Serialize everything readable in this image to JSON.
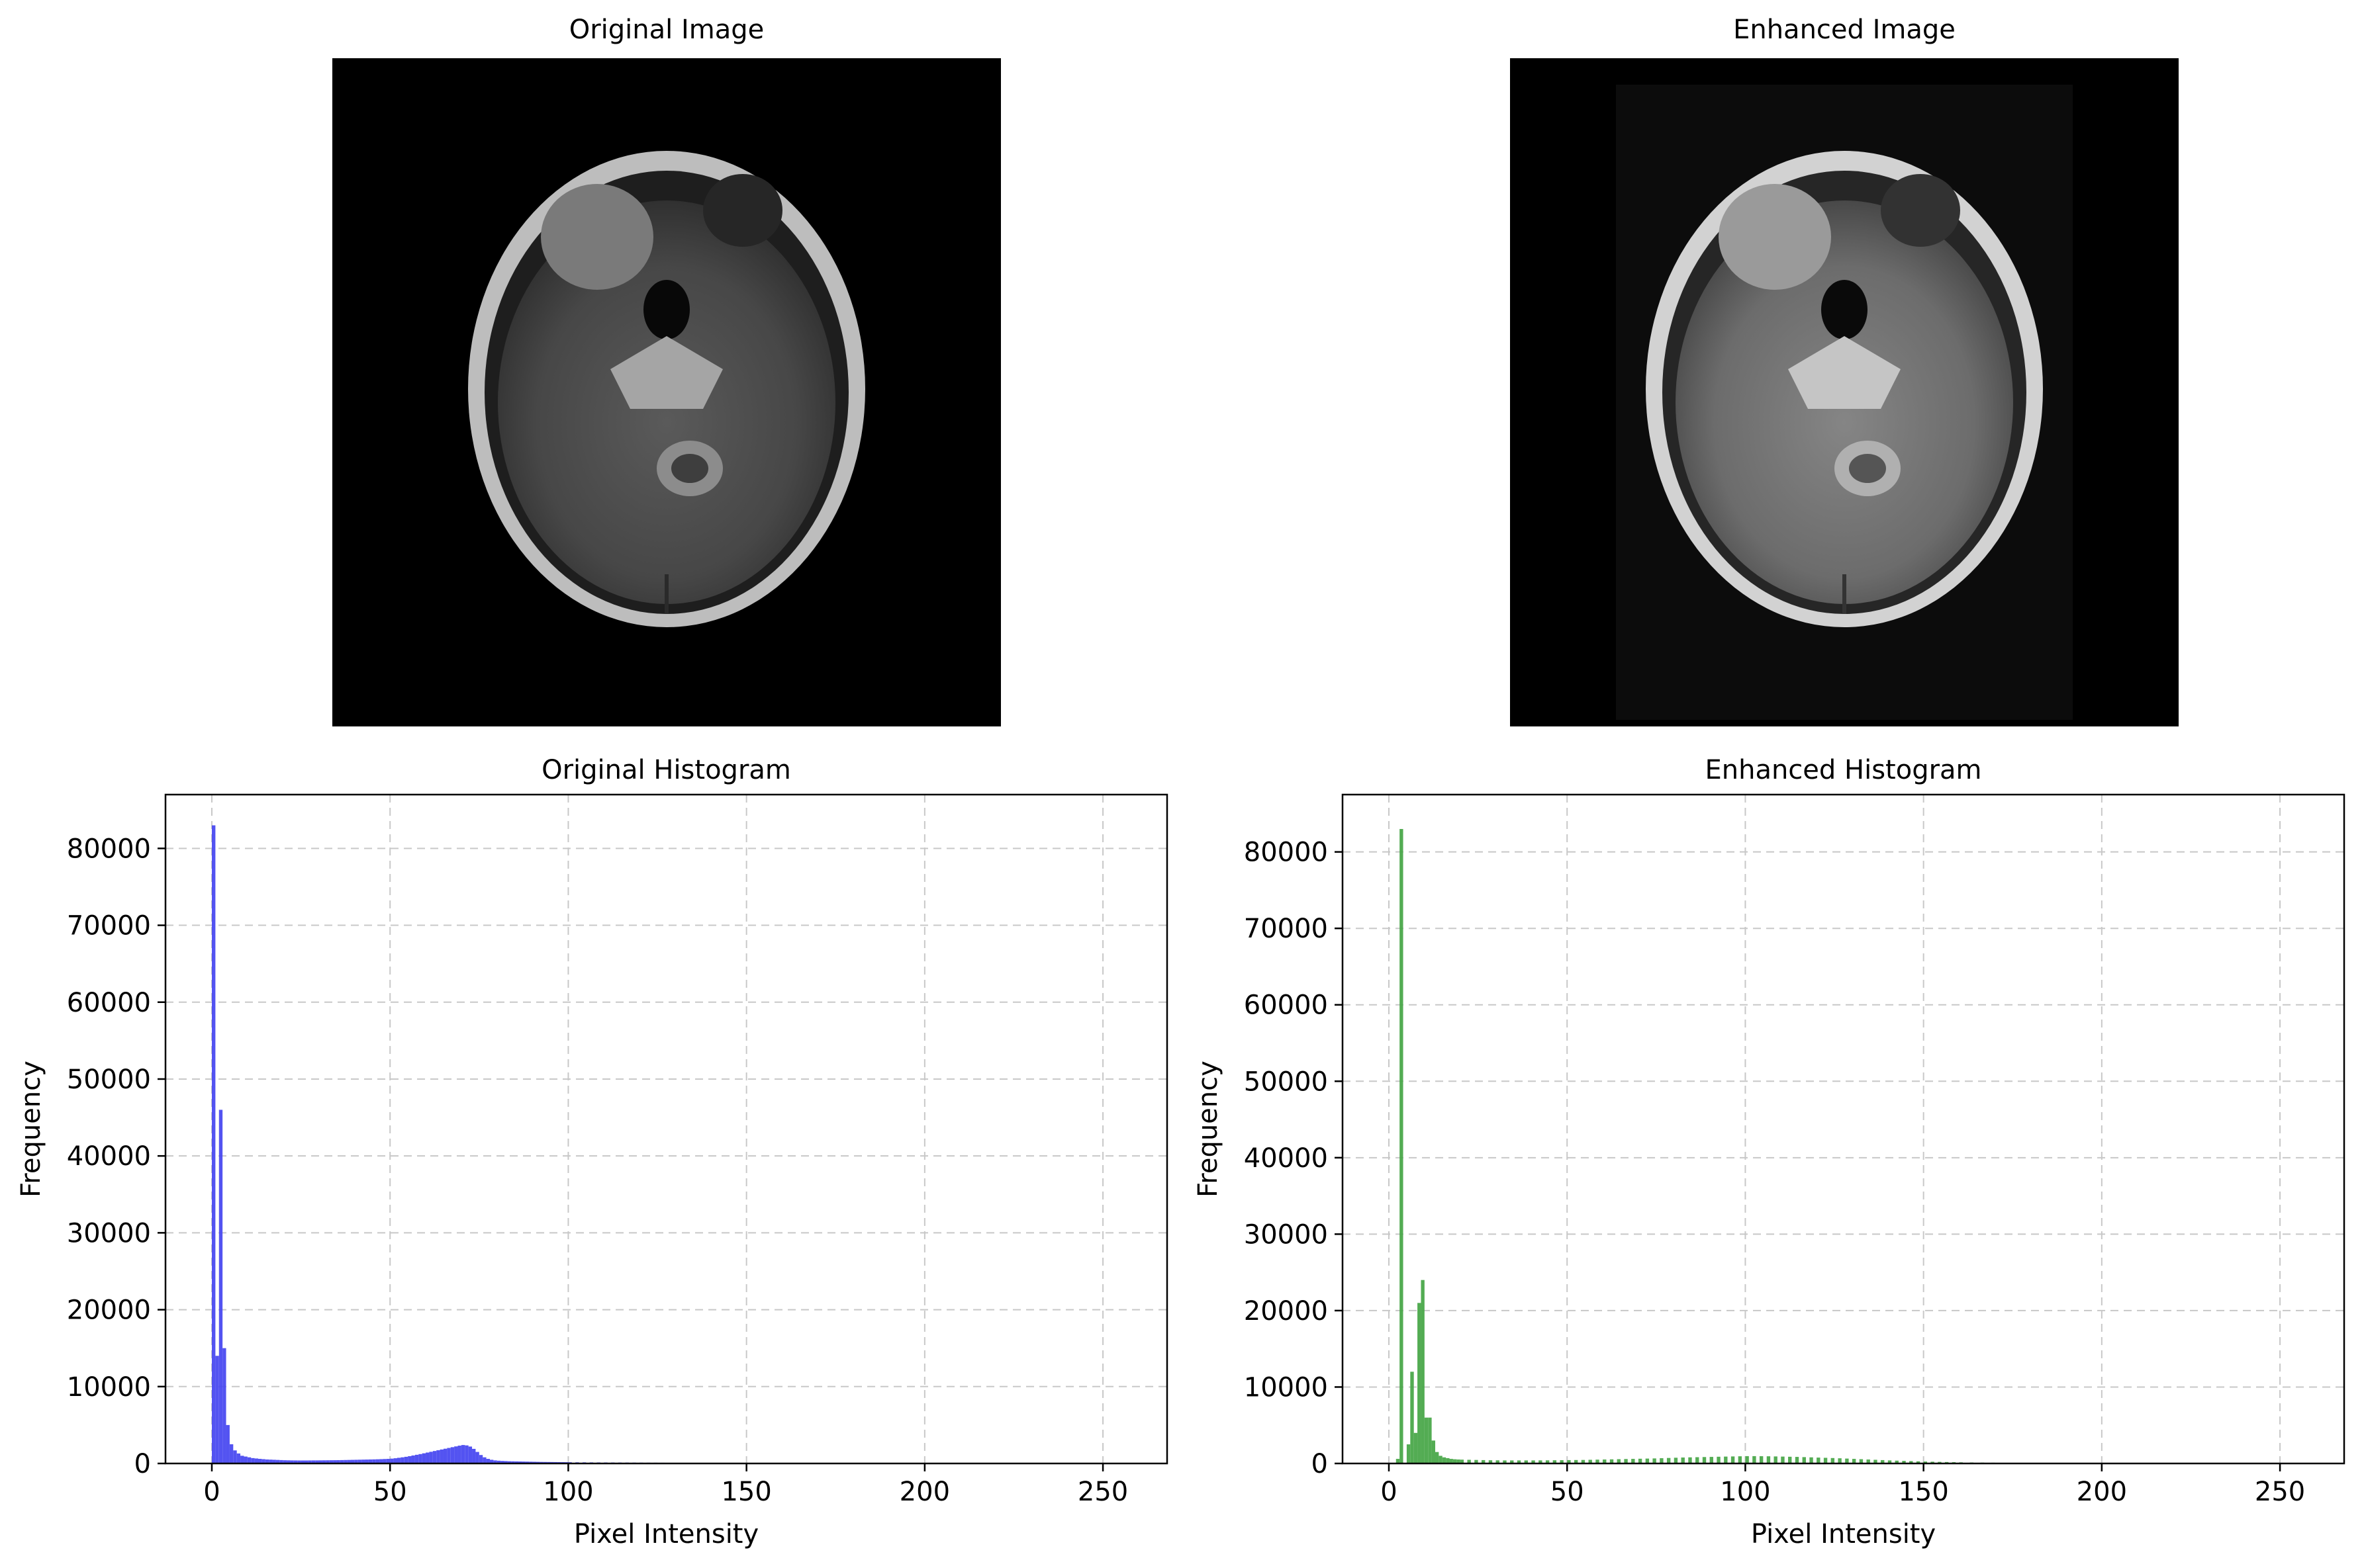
{
  "panels": {
    "original_image_title": "Original Image",
    "enhanced_image_title": "Enhanced Image"
  },
  "chart_data": [
    {
      "type": "bar",
      "title": "Original Histogram",
      "xlabel": "Pixel Intensity",
      "ylabel": "Frequency",
      "xlim": [
        -13,
        268
      ],
      "ylim": [
        0,
        87000
      ],
      "xticks": [
        0,
        50,
        100,
        150,
        200,
        250
      ],
      "yticks": [
        0,
        10000,
        20000,
        30000,
        40000,
        50000,
        60000,
        70000,
        80000
      ],
      "grid": true,
      "color": "#4a4af0",
      "bin_width": 1,
      "bins": [
        [
          0,
          83000
        ],
        [
          1,
          14000
        ],
        [
          2,
          46000
        ],
        [
          3,
          15000
        ],
        [
          4,
          5000
        ],
        [
          5,
          2500
        ],
        [
          6,
          1700
        ],
        [
          7,
          1300
        ],
        [
          8,
          1000
        ],
        [
          9,
          900
        ],
        [
          10,
          800
        ],
        [
          11,
          700
        ],
        [
          12,
          650
        ],
        [
          13,
          600
        ],
        [
          14,
          560
        ],
        [
          15,
          520
        ],
        [
          16,
          500
        ],
        [
          17,
          480
        ],
        [
          18,
          460
        ],
        [
          19,
          440
        ],
        [
          20,
          420
        ],
        [
          21,
          410
        ],
        [
          22,
          400
        ],
        [
          23,
          395
        ],
        [
          24,
          390
        ],
        [
          25,
          390
        ],
        [
          26,
          390
        ],
        [
          27,
          395
        ],
        [
          28,
          400
        ],
        [
          29,
          400
        ],
        [
          30,
          405
        ],
        [
          31,
          410
        ],
        [
          32,
          415
        ],
        [
          33,
          420
        ],
        [
          34,
          425
        ],
        [
          35,
          430
        ],
        [
          36,
          440
        ],
        [
          37,
          450
        ],
        [
          38,
          460
        ],
        [
          39,
          470
        ],
        [
          40,
          480
        ],
        [
          41,
          490
        ],
        [
          42,
          500
        ],
        [
          43,
          510
        ],
        [
          44,
          520
        ],
        [
          45,
          530
        ],
        [
          46,
          545
        ],
        [
          47,
          560
        ],
        [
          48,
          580
        ],
        [
          49,
          600
        ],
        [
          50,
          630
        ],
        [
          51,
          680
        ],
        [
          52,
          740
        ],
        [
          53,
          800
        ],
        [
          54,
          870
        ],
        [
          55,
          950
        ],
        [
          56,
          1040
        ],
        [
          57,
          1130
        ],
        [
          58,
          1220
        ],
        [
          59,
          1320
        ],
        [
          60,
          1420
        ],
        [
          61,
          1520
        ],
        [
          62,
          1620
        ],
        [
          63,
          1720
        ],
        [
          64,
          1820
        ],
        [
          65,
          1920
        ],
        [
          66,
          2020
        ],
        [
          67,
          2120
        ],
        [
          68,
          2220
        ],
        [
          69,
          2320
        ],
        [
          70,
          2400
        ],
        [
          71,
          2350
        ],
        [
          72,
          2200
        ],
        [
          73,
          1900
        ],
        [
          74,
          1500
        ],
        [
          75,
          1100
        ],
        [
          76,
          800
        ],
        [
          77,
          600
        ],
        [
          78,
          480
        ],
        [
          79,
          400
        ],
        [
          80,
          360
        ],
        [
          81,
          330
        ],
        [
          82,
          310
        ],
        [
          83,
          290
        ],
        [
          84,
          280
        ],
        [
          85,
          270
        ],
        [
          86,
          260
        ],
        [
          87,
          250
        ],
        [
          88,
          240
        ],
        [
          89,
          230
        ],
        [
          90,
          220
        ],
        [
          91,
          210
        ],
        [
          92,
          200
        ],
        [
          93,
          195
        ],
        [
          94,
          190
        ],
        [
          95,
          185
        ],
        [
          96,
          180
        ],
        [
          97,
          175
        ],
        [
          98,
          170
        ],
        [
          99,
          165
        ],
        [
          100,
          160
        ],
        [
          102,
          150
        ],
        [
          104,
          145
        ],
        [
          106,
          140
        ],
        [
          108,
          135
        ],
        [
          110,
          130
        ],
        [
          112,
          125
        ],
        [
          114,
          120
        ],
        [
          116,
          115
        ],
        [
          118,
          110
        ],
        [
          120,
          105
        ],
        [
          122,
          100
        ],
        [
          124,
          95
        ],
        [
          126,
          90
        ],
        [
          128,
          85
        ],
        [
          130,
          80
        ],
        [
          132,
          75
        ],
        [
          134,
          70
        ],
        [
          136,
          65
        ],
        [
          138,
          60
        ],
        [
          140,
          55
        ],
        [
          142,
          50
        ],
        [
          144,
          45
        ],
        [
          146,
          40
        ],
        [
          148,
          35
        ],
        [
          150,
          30
        ],
        [
          153,
          25
        ],
        [
          156,
          20
        ]
      ]
    },
    {
      "type": "bar",
      "title": "Enhanced Histogram",
      "xlabel": "Pixel Intensity",
      "ylabel": "Frequency",
      "xlim": [
        -13,
        268
      ],
      "ylim": [
        0,
        87500
      ],
      "xticks": [
        0,
        50,
        100,
        150,
        200,
        250
      ],
      "yticks": [
        0,
        10000,
        20000,
        30000,
        40000,
        50000,
        60000,
        70000,
        80000
      ],
      "grid": true,
      "color": "#4aa84a",
      "bin_width": 1,
      "bins": [
        [
          2,
          600
        ],
        [
          3,
          83000
        ],
        [
          5,
          2500
        ],
        [
          6,
          12000
        ],
        [
          7,
          4000
        ],
        [
          8,
          21000
        ],
        [
          9,
          24000
        ],
        [
          10,
          6000
        ],
        [
          11,
          6000
        ],
        [
          12,
          3000
        ],
        [
          13,
          1500
        ],
        [
          14,
          1000
        ],
        [
          15,
          800
        ],
        [
          16,
          700
        ],
        [
          17,
          600
        ],
        [
          18,
          550
        ],
        [
          19,
          520
        ],
        [
          20,
          500
        ],
        [
          22,
          480
        ],
        [
          24,
          460
        ],
        [
          26,
          440
        ],
        [
          28,
          420
        ],
        [
          30,
          410
        ],
        [
          32,
          400
        ],
        [
          34,
          400
        ],
        [
          36,
          400
        ],
        [
          38,
          400
        ],
        [
          40,
          400
        ],
        [
          42,
          405
        ],
        [
          44,
          410
        ],
        [
          46,
          420
        ],
        [
          48,
          430
        ],
        [
          50,
          440
        ],
        [
          52,
          450
        ],
        [
          54,
          460
        ],
        [
          56,
          480
        ],
        [
          58,
          500
        ],
        [
          60,
          520
        ],
        [
          62,
          540
        ],
        [
          64,
          560
        ],
        [
          66,
          580
        ],
        [
          68,
          600
        ],
        [
          70,
          620
        ],
        [
          72,
          640
        ],
        [
          74,
          660
        ],
        [
          76,
          690
        ],
        [
          78,
          720
        ],
        [
          80,
          750
        ],
        [
          82,
          780
        ],
        [
          84,
          800
        ],
        [
          86,
          820
        ],
        [
          88,
          840
        ],
        [
          90,
          860
        ],
        [
          92,
          880
        ],
        [
          94,
          900
        ],
        [
          96,
          920
        ],
        [
          98,
          940
        ],
        [
          100,
          960
        ],
        [
          102,
          960
        ],
        [
          104,
          950
        ],
        [
          106,
          940
        ],
        [
          108,
          920
        ],
        [
          110,
          900
        ],
        [
          112,
          880
        ],
        [
          114,
          860
        ],
        [
          116,
          830
        ],
        [
          118,
          800
        ],
        [
          120,
          770
        ],
        [
          122,
          740
        ],
        [
          124,
          710
        ],
        [
          126,
          680
        ],
        [
          128,
          640
        ],
        [
          130,
          600
        ],
        [
          132,
          560
        ],
        [
          134,
          520
        ],
        [
          136,
          480
        ],
        [
          138,
          440
        ],
        [
          140,
          400
        ],
        [
          142,
          370
        ],
        [
          144,
          340
        ],
        [
          146,
          310
        ],
        [
          148,
          280
        ],
        [
          150,
          250
        ],
        [
          152,
          230
        ],
        [
          154,
          210
        ],
        [
          156,
          190
        ],
        [
          158,
          170
        ],
        [
          160,
          150
        ],
        [
          163,
          130
        ],
        [
          166,
          110
        ],
        [
          169,
          95
        ],
        [
          172,
          80
        ],
        [
          175,
          70
        ],
        [
          178,
          60
        ],
        [
          181,
          50
        ],
        [
          184,
          45
        ],
        [
          187,
          40
        ],
        [
          190,
          35
        ],
        [
          193,
          30
        ],
        [
          196,
          26
        ],
        [
          199,
          22
        ],
        [
          202,
          18
        ],
        [
          205,
          15
        ],
        [
          208,
          12
        ],
        [
          211,
          10
        ]
      ]
    }
  ]
}
